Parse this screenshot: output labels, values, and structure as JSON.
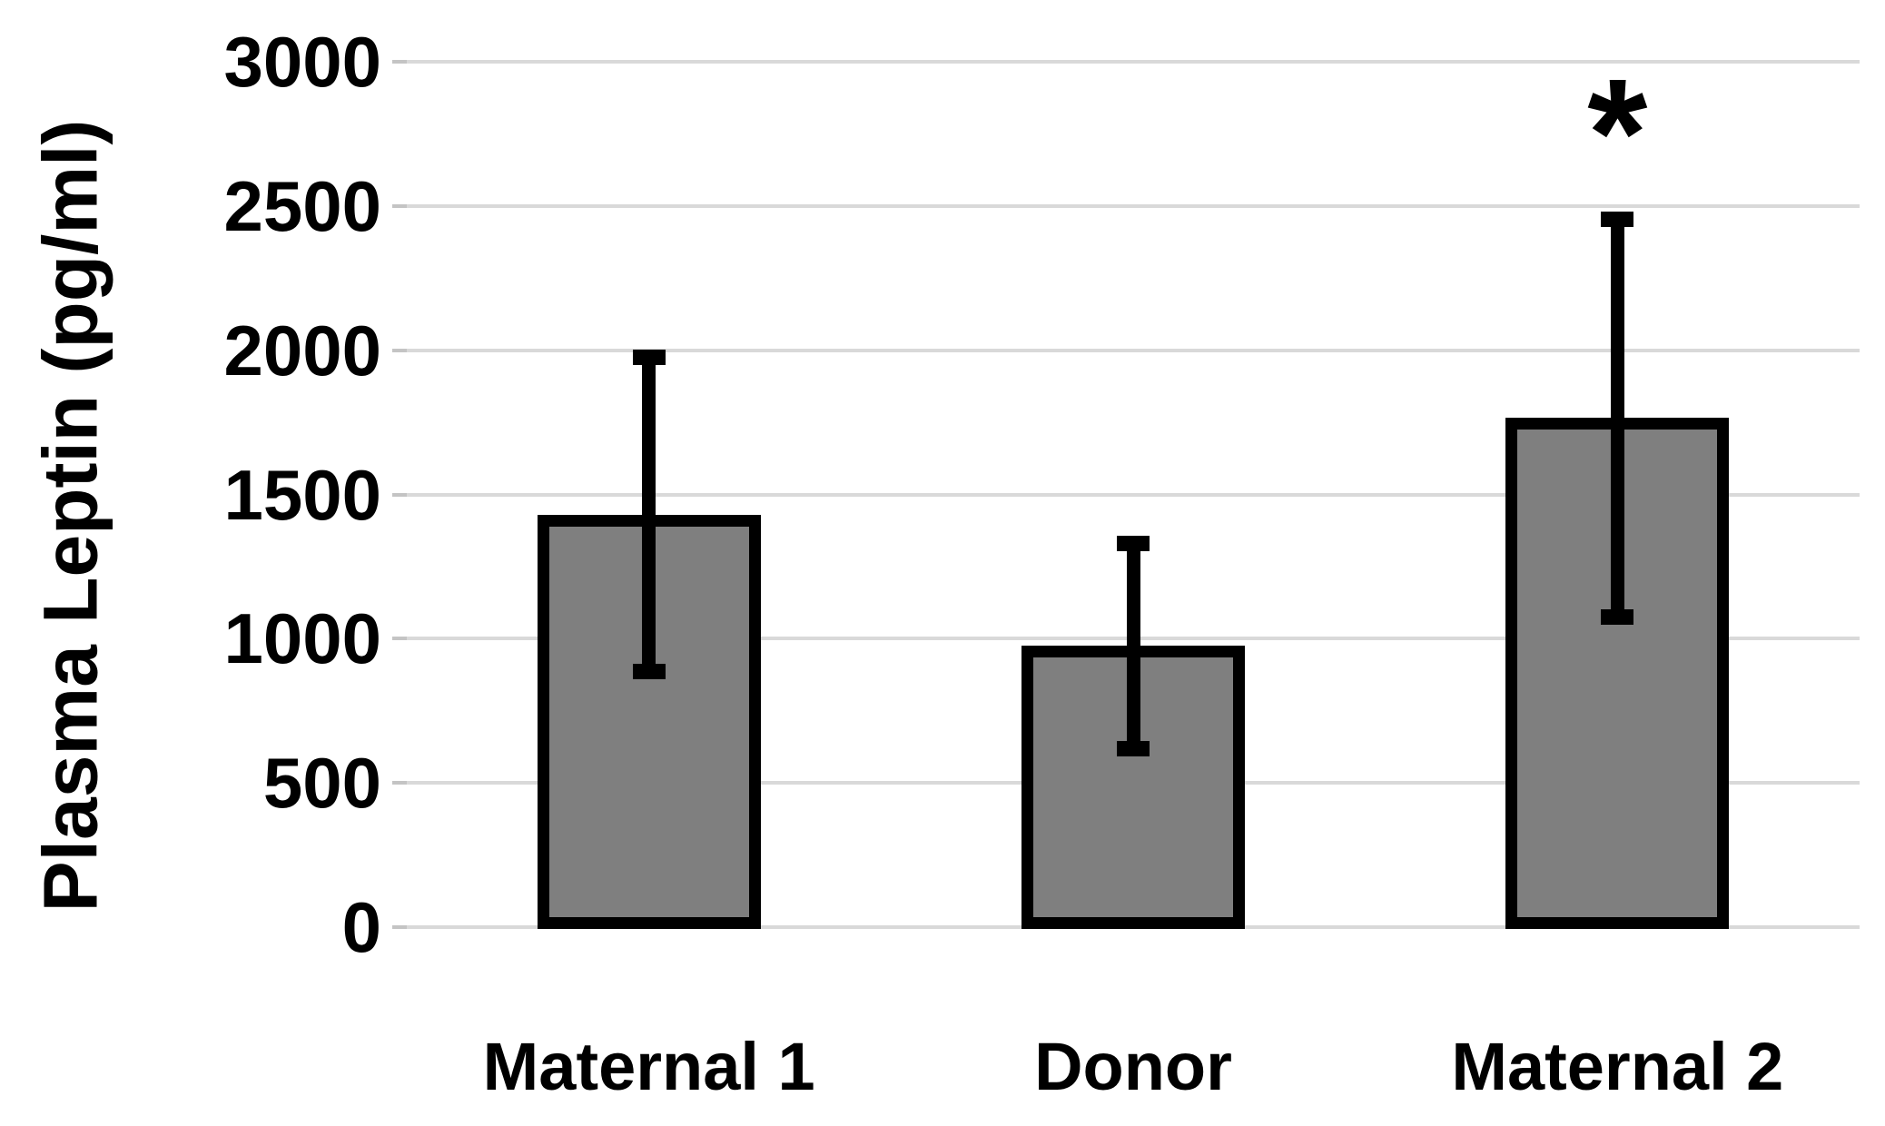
{
  "figure": {
    "background": "#ffffff"
  },
  "chart_data": {
    "type": "bar",
    "title": "",
    "xlabel": "",
    "ylabel": "Plasma Leptin (pg/ml)",
    "categories": [
      "Maternal 1",
      "Donor",
      "Maternal 2"
    ],
    "values": [
      1430,
      975,
      1765
    ],
    "error_bars": [
      545,
      355,
      690
    ],
    "ylim": [
      0,
      3000
    ],
    "ytick_step": 500,
    "ytick_labels": [
      "0",
      "500",
      "1000",
      "1500",
      "2000",
      "2500",
      "3000"
    ],
    "grid": true,
    "legend_position": "none",
    "annotations": [
      {
        "text": "*",
        "category_index": 2,
        "meaning": "statistical-significance-marker"
      }
    ],
    "colors": {
      "bar_fill": "#7f7f7f",
      "bar_border": "#000000",
      "error_bar": "#000000",
      "gridline": "#d9d9d9",
      "tick_stub": "#c4c4c4",
      "text": "#000000"
    }
  }
}
